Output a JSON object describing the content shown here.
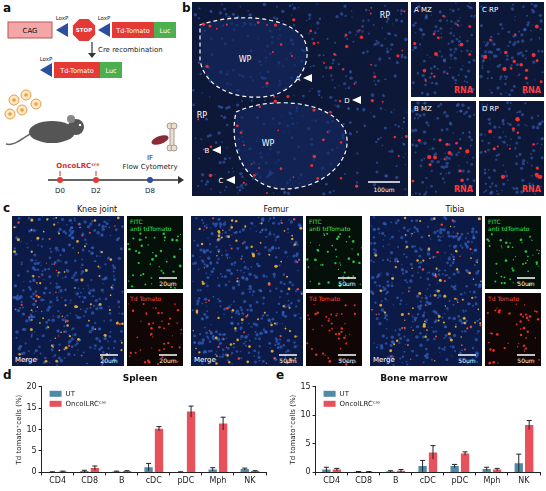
{
  "panels": {
    "a": {
      "letter": "a",
      "construct": {
        "promoter": "CAG",
        "stop": "STOP",
        "loxp": "LoxP",
        "reporter": "Td-Tomato",
        "luciferase": "Luc"
      },
      "step": "Cre recombination",
      "timeline": {
        "treatment": "OncoLRCᶜʳᵉ",
        "days": [
          "D0",
          "D2",
          "D8"
        ],
        "readout": [
          "IF",
          "Flow Cytometry"
        ]
      }
    },
    "b": {
      "letter": "b",
      "regions": [
        "RP",
        "WP",
        "RP",
        "WP"
      ],
      "arrows": [
        "A",
        "B",
        "C",
        "D"
      ],
      "scale_bar": "100um",
      "insets": [
        {
          "label": "A MZ",
          "stain": "RNA"
        },
        {
          "label": "C RP",
          "stain": "RNA"
        },
        {
          "label": "B MZ",
          "stain": "RNA"
        },
        {
          "label": "D RP",
          "stain": "RNA"
        }
      ]
    },
    "c": {
      "letter": "c",
      "groups": [
        {
          "title": "Knee joint",
          "merge": "Merge",
          "scale_bar": "20um",
          "green_label": [
            "FITC",
            "anti tdTomato"
          ],
          "red_label": "Td Tomato"
        },
        {
          "title": "Femur",
          "merge": "Merge",
          "scale_bar": "50um",
          "green_label": [
            "FITC",
            "anti tdTomato"
          ],
          "red_label": "Td Tomato"
        },
        {
          "title": "Tibia",
          "merge": "Merge",
          "scale_bar": "50um",
          "green_label": [
            "FITC",
            "anti tdTomato"
          ],
          "red_label": "Td Tomato"
        }
      ]
    }
  },
  "chart_data": [
    {
      "panel": "d",
      "type": "bar",
      "title": "Spleen",
      "y_label": "Td tomato⁺cells (%)",
      "categories": [
        "CD4",
        "CD8",
        "B",
        "cDC",
        "pDC",
        "Mph",
        "NK"
      ],
      "series": [
        {
          "name": "UT",
          "color": "#4f8aa8",
          "values": [
            0.1,
            0.3,
            0.2,
            1.2,
            0.1,
            0.7,
            0.8
          ],
          "errors": [
            0.05,
            0.2,
            0.1,
            0.9,
            0.05,
            0.4,
            0.2
          ]
        },
        {
          "name": "OncolLRCᶜʳᵉ",
          "color": "#e8505b",
          "values": [
            0.2,
            1.0,
            0.3,
            10.2,
            14.2,
            11.4,
            0.3
          ],
          "errors": [
            0.1,
            0.5,
            0.1,
            0.5,
            1.3,
            1.5,
            0.1
          ]
        }
      ],
      "ylim": [
        0,
        20
      ],
      "yticks": [
        0,
        5,
        10,
        15,
        20
      ],
      "legend": "top-left",
      "grid": false
    },
    {
      "panel": "e",
      "type": "bar",
      "title": "Bone marrow",
      "y_label": "Td tomato⁺cells (%)",
      "categories": [
        "CD4",
        "CD8",
        "B",
        "cDC",
        "pDC",
        "Mph",
        "NK"
      ],
      "series": [
        {
          "name": "UT",
          "color": "#4f8aa8",
          "values": [
            0.5,
            0.1,
            0.2,
            1.1,
            1.1,
            0.6,
            1.6
          ],
          "errors": [
            0.4,
            0.05,
            0.1,
            1.0,
            0.3,
            0.3,
            1.6
          ]
        },
        {
          "name": "OncolLRCᶜʳᵉ",
          "color": "#e8505b",
          "values": [
            0.5,
            0.1,
            0.3,
            3.5,
            3.3,
            0.5,
            8.3
          ],
          "errors": [
            0.2,
            0.05,
            0.2,
            1.2,
            0.3,
            0.2,
            0.8
          ]
        }
      ],
      "ylim": [
        0,
        15
      ],
      "yticks": [
        0,
        5,
        10,
        15
      ],
      "legend": "top-left",
      "grid": false
    }
  ]
}
